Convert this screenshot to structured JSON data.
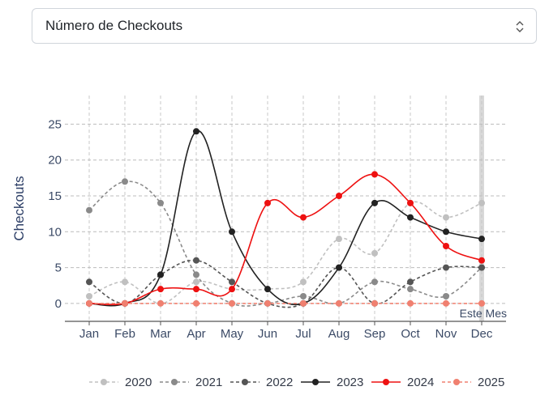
{
  "select": {
    "value": "Número de Checkouts",
    "icon": "chevron-up-down-icon"
  },
  "chart_data": {
    "type": "line",
    "ylabel": "Checkouts",
    "categories": [
      "Jan",
      "Feb",
      "Mar",
      "Apr",
      "May",
      "Jun",
      "Jul",
      "Aug",
      "Sep",
      "Oct",
      "Nov",
      "Dec"
    ],
    "yticks": [
      0,
      5,
      10,
      15,
      20,
      25
    ],
    "ylim": [
      -2.5,
      29
    ],
    "grid": true,
    "legend_position": "bottom",
    "annotation": "Este Mes",
    "highlight_category": "Dec",
    "series": [
      {
        "name": "2020",
        "color": "#c0c0c0",
        "dash": "4,3",
        "values": [
          1,
          3,
          0,
          3,
          2,
          2,
          3,
          9,
          7,
          14,
          12,
          14
        ]
      },
      {
        "name": "2021",
        "color": "#8a8a8a",
        "dash": "4,3",
        "values": [
          13,
          17,
          14,
          4,
          0,
          0,
          1,
          0,
          3,
          2,
          1,
          5
        ]
      },
      {
        "name": "2022",
        "color": "#555555",
        "dash": "4,3",
        "values": [
          3,
          0,
          4,
          6,
          3,
          0,
          0,
          5,
          0,
          3,
          5,
          5
        ]
      },
      {
        "name": "2023",
        "color": "#222222",
        "dash": "",
        "values": [
          0,
          0,
          4,
          24,
          10,
          2,
          0,
          5,
          14,
          12,
          10,
          9
        ]
      },
      {
        "name": "2024",
        "color": "#ee1111",
        "dash": "",
        "values": [
          0,
          0,
          2,
          2,
          2,
          14,
          12,
          15,
          18,
          14,
          8,
          6
        ]
      },
      {
        "name": "2025",
        "color": "#f08070",
        "dash": "4,3",
        "values": [
          0,
          0,
          0,
          0,
          0,
          0,
          0,
          0,
          0,
          0,
          0,
          0
        ]
      }
    ]
  }
}
